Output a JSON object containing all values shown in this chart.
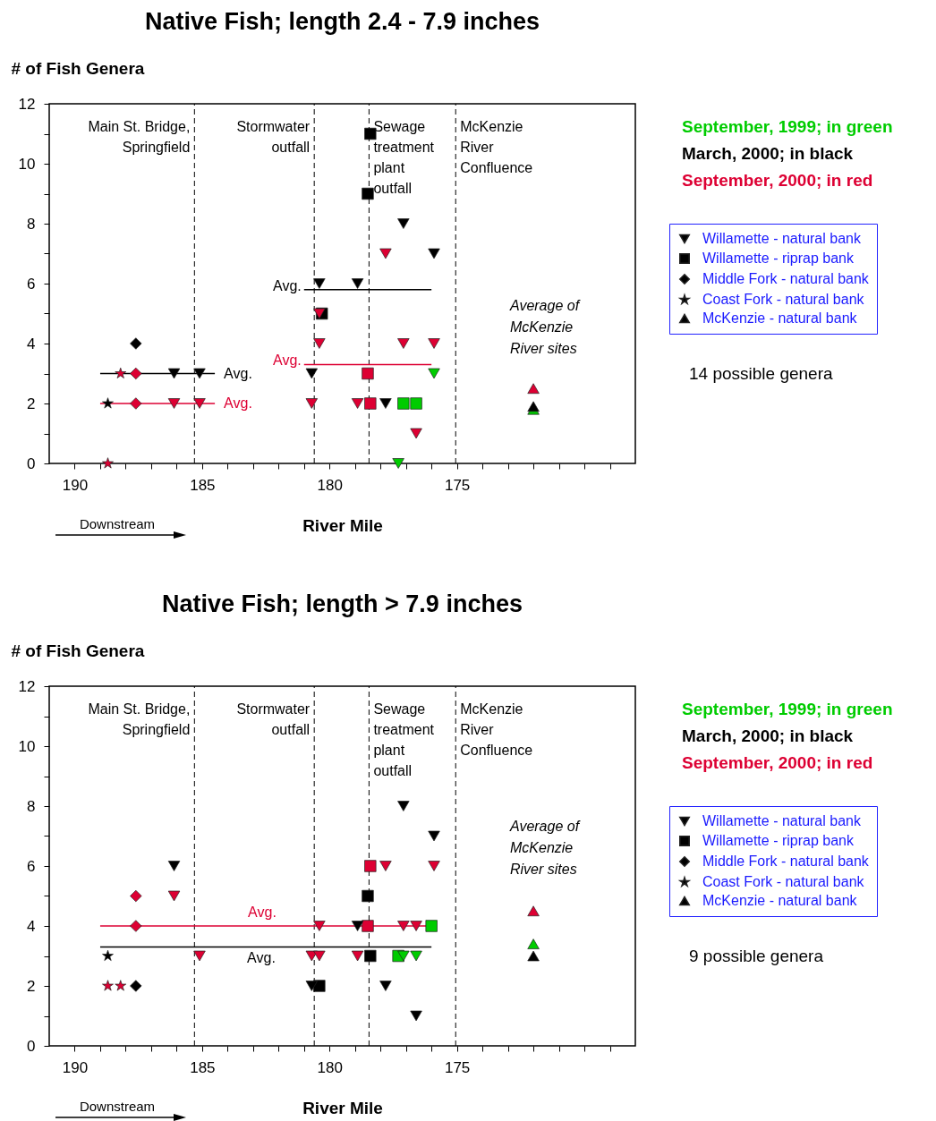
{
  "chart_data": [
    {
      "type": "scatter",
      "title": "Native Fish; length 2.4 - 7.9 inches",
      "xlabel": "River Mile",
      "ylabel": "# of Fish Genera",
      "xlim": [
        191,
        168
      ],
      "ylim": [
        0,
        12
      ],
      "xticks": [
        190,
        {
          "value": 189,
          "label": null
        },
        {
          "value": 188,
          "label": null
        },
        {
          "value": 187,
          "label": null
        },
        {
          "value": 186,
          "label": null
        },
        185,
        {
          "value": 184,
          "label": null
        },
        {
          "value": 183,
          "label": null
        },
        {
          "value": 182,
          "label": null
        },
        {
          "value": 181,
          "label": null
        },
        180,
        {
          "value": 179,
          "label": null
        },
        {
          "value": 178,
          "label": null
        },
        {
          "value": 177,
          "label": null
        },
        {
          "value": 176,
          "label": null
        },
        175,
        {
          "value": 174,
          "label": null
        },
        {
          "value": 173,
          "label": null
        },
        {
          "value": 172,
          "label": null
        },
        {
          "value": 171,
          "label": null
        },
        {
          "value": 170,
          "label": null
        },
        {
          "value": 169,
          "label": null
        }
      ],
      "yticks": [
        0,
        {
          "value": 1,
          "label": null
        },
        2,
        {
          "value": 3,
          "label": null
        },
        4,
        {
          "value": 5,
          "label": null
        },
        6,
        {
          "value": 7,
          "label": null
        },
        8,
        {
          "value": 9,
          "label": null
        },
        10,
        {
          "value": 11,
          "label": null
        },
        12
      ],
      "legend": "right",
      "series": [
        {
          "name": "Willamette - natural bank",
          "marker": "triangle-down",
          "color": "#000000",
          "x": [
            186.1,
            185.1,
            186.1,
            185.1,
            180.4,
            180.4,
            180.4,
            180.7,
            180.7,
            177.1,
            177.8,
            175.9,
            178.9,
            177.1,
            175.9,
            175.9,
            178.9,
            177.8,
            176.6,
            177.3
          ],
          "values": [
            3,
            3,
            2,
            2,
            6,
            5,
            4,
            3,
            2,
            8,
            7,
            7,
            6,
            4,
            4,
            3,
            2,
            2,
            1,
            0
          ],
          "colors": [
            "#000000",
            "#000000",
            "#dd0033",
            "#dd0033",
            "#000000",
            "#dd0033",
            "#dd0033",
            "#000000",
            "#dd0033",
            "#000000",
            "#dd0033",
            "#000000",
            "#000000",
            "#dd0033",
            "#dd0033",
            "#00cc00",
            "#dd0033",
            "#000000",
            "#dd0033",
            "#00cc00"
          ]
        },
        {
          "name": "Willamette - riprap bank",
          "marker": "square",
          "color": "#000000",
          "x": [
            180.3,
            178.4,
            178.5,
            178.5,
            178.4,
            177.1,
            176.6
          ],
          "values": [
            5,
            11,
            9,
            3,
            2,
            2,
            2
          ],
          "colors": [
            "#000000",
            "#000000",
            "#000000",
            "#dd0033",
            "#dd0033",
            "#00cc00",
            "#00cc00"
          ]
        },
        {
          "name": "Middle Fork - natural bank",
          "marker": "diamond",
          "color": "#000000",
          "x": [
            187.6,
            187.6,
            187.6
          ],
          "values": [
            4,
            3,
            2
          ],
          "colors": [
            "#000000",
            "#dd0033",
            "#dd0033"
          ]
        },
        {
          "name": "Coast Fork - natural bank",
          "marker": "star",
          "color": "#000000",
          "x": [
            188.2,
            188.7,
            188.7
          ],
          "values": [
            3,
            2,
            0
          ],
          "colors": [
            "#dd0033",
            "#000000",
            "#dd0033"
          ]
        },
        {
          "name": "McKenzie - natural bank",
          "marker": "triangle",
          "color": "#000000",
          "x": [
            172,
            172,
            172
          ],
          "values": [
            1.8,
            1.9,
            2.5
          ],
          "colors": [
            "#00cc00",
            "#000000",
            "#dd0033"
          ]
        },
        {
          "type": "line",
          "name": "Avg.",
          "color": "#000000",
          "x": [
            189,
            184.5
          ],
          "values": [
            3,
            3
          ]
        },
        {
          "type": "line",
          "name": "Avg.",
          "color": "#dd0033",
          "x": [
            189,
            184.5
          ],
          "values": [
            2,
            2
          ]
        },
        {
          "type": "line",
          "name": "Avg.",
          "color": "#000000",
          "x": [
            181,
            176
          ],
          "values": [
            5.8,
            5.8
          ]
        },
        {
          "type": "line",
          "name": "Avg.",
          "color": "#dd0033",
          "x": [
            181,
            176
          ],
          "values": [
            3.3,
            3.3
          ]
        }
      ],
      "ref_lines": [
        {
          "axis": "x",
          "value": 185.3,
          "label": "Main St. Bridge,\nSpringfield",
          "line_style": "dashed",
          "color": "#000000"
        },
        {
          "axis": "x",
          "value": 180.6,
          "label": "Stormwater\noutfall",
          "line_style": "dashed",
          "color": "#000000"
        },
        {
          "axis": "x",
          "value": 178.45,
          "label": "Sewage\ntreatment\nplant\noutfall",
          "line_style": "dashed",
          "color": "#000000"
        },
        {
          "axis": "x",
          "value": 175.05,
          "label": "McKenzie\nRiver\nConfluence",
          "line_style": "dashed",
          "color": "#000000"
        }
      ],
      "annotations": [
        "September, 1999; in green",
        "March, 2000; in black",
        "September, 2000; in red",
        "14 possible genera",
        "Downstream",
        "Average of\nMcKenzie\nRiver sites"
      ]
    },
    {
      "type": "scatter",
      "title": "Native Fish; length > 7.9 inches",
      "xlabel": "River Mile",
      "ylabel": "# of Fish Genera",
      "xlim": [
        191,
        168
      ],
      "ylim": [
        0,
        12
      ],
      "xticks": [
        190,
        {
          "value": 189,
          "label": null
        },
        {
          "value": 188,
          "label": null
        },
        {
          "value": 187,
          "label": null
        },
        {
          "value": 186,
          "label": null
        },
        185,
        {
          "value": 184,
          "label": null
        },
        {
          "value": 183,
          "label": null
        },
        {
          "value": 182,
          "label": null
        },
        {
          "value": 181,
          "label": null
        },
        180,
        {
          "value": 179,
          "label": null
        },
        {
          "value": 178,
          "label": null
        },
        {
          "value": 177,
          "label": null
        },
        {
          "value": 176,
          "label": null
        },
        175,
        {
          "value": 174,
          "label": null
        },
        {
          "value": 173,
          "label": null
        },
        {
          "value": 172,
          "label": null
        },
        {
          "value": 171,
          "label": null
        },
        {
          "value": 170,
          "label": null
        },
        {
          "value": 169,
          "label": null
        }
      ],
      "yticks": [
        0,
        {
          "value": 1,
          "label": null
        },
        2,
        {
          "value": 3,
          "label": null
        },
        4,
        {
          "value": 5,
          "label": null
        },
        6,
        {
          "value": 7,
          "label": null
        },
        8,
        {
          "value": 9,
          "label": null
        },
        10,
        {
          "value": 11,
          "label": null
        },
        12
      ],
      "legend": "right",
      "series": [
        {
          "name": "Willamette - natural bank",
          "marker": "triangle-down",
          "color": "#000000",
          "x": [
            186.1,
            186.1,
            185.1,
            180.7,
            180.4,
            180.4,
            180.7,
            177.1,
            175.9,
            177.8,
            175.9,
            178.9,
            177.1,
            176.6,
            178.9,
            177.1,
            176.6,
            177.8,
            176.6
          ],
          "values": [
            6,
            5,
            3,
            3,
            3,
            4,
            2,
            8,
            7,
            6,
            6,
            4,
            4,
            4,
            3,
            3,
            3,
            2,
            1
          ],
          "colors": [
            "#000000",
            "#dd0033",
            "#dd0033",
            "#dd0033",
            "#dd0033",
            "#dd0033",
            "#000000",
            "#000000",
            "#000000",
            "#dd0033",
            "#dd0033",
            "#000000",
            "#dd0033",
            "#dd0033",
            "#dd0033",
            "#00cc00",
            "#00cc00",
            "#000000",
            "#000000"
          ]
        },
        {
          "name": "Willamette - riprap bank",
          "marker": "square",
          "color": "#000000",
          "x": [
            180.4,
            178.4,
            178.5,
            178.5,
            178.4,
            177.3,
            176
          ],
          "values": [
            2,
            6,
            5,
            4,
            3,
            3,
            4
          ],
          "colors": [
            "#000000",
            "#dd0033",
            "#000000",
            "#dd0033",
            "#000000",
            "#00cc00",
            "#00cc00"
          ]
        },
        {
          "name": "Middle Fork - natural bank",
          "marker": "diamond",
          "color": "#000000",
          "x": [
            187.6,
            187.6,
            187.6
          ],
          "values": [
            5,
            4,
            2
          ],
          "colors": [
            "#dd0033",
            "#dd0033",
            "#000000"
          ]
        },
        {
          "name": "Coast Fork - natural bank",
          "marker": "star",
          "color": "#000000",
          "x": [
            188.7,
            188.7,
            188.2
          ],
          "values": [
            3,
            2,
            2
          ],
          "colors": [
            "#000000",
            "#dd0033",
            "#dd0033"
          ]
        },
        {
          "name": "McKenzie - natural bank",
          "marker": "triangle",
          "color": "#000000",
          "x": [
            172,
            172,
            172
          ],
          "values": [
            3,
            3.4,
            4.5
          ],
          "colors": [
            "#000000",
            "#00cc00",
            "#dd0033"
          ]
        },
        {
          "type": "line",
          "name": "Avg.",
          "color": "#dd0033",
          "x": [
            189,
            176.2
          ],
          "values": [
            4,
            4
          ]
        },
        {
          "type": "line",
          "name": "Avg.",
          "color": "#000000",
          "x": [
            189,
            176
          ],
          "values": [
            3.3,
            3.3
          ]
        }
      ],
      "ref_lines": [
        {
          "axis": "x",
          "value": 185.3,
          "label": "Main St. Bridge,\nSpringfield",
          "line_style": "dashed",
          "color": "#000000"
        },
        {
          "axis": "x",
          "value": 180.6,
          "label": "Stormwater\noutfall",
          "line_style": "dashed",
          "color": "#000000"
        },
        {
          "axis": "x",
          "value": 178.45,
          "label": "Sewage\ntreatment\nplant\noutfall",
          "line_style": "dashed",
          "color": "#000000"
        },
        {
          "axis": "x",
          "value": 175.05,
          "label": "McKenzie\nRiver\nConfluence",
          "line_style": "dashed",
          "color": "#000000"
        }
      ],
      "annotations": [
        "September, 1999; in green",
        "March, 2000; in black",
        "September, 2000; in red",
        "9 possible genera",
        "Downstream",
        "Average of\nMcKenzie\nRiver sites"
      ]
    }
  ]
}
